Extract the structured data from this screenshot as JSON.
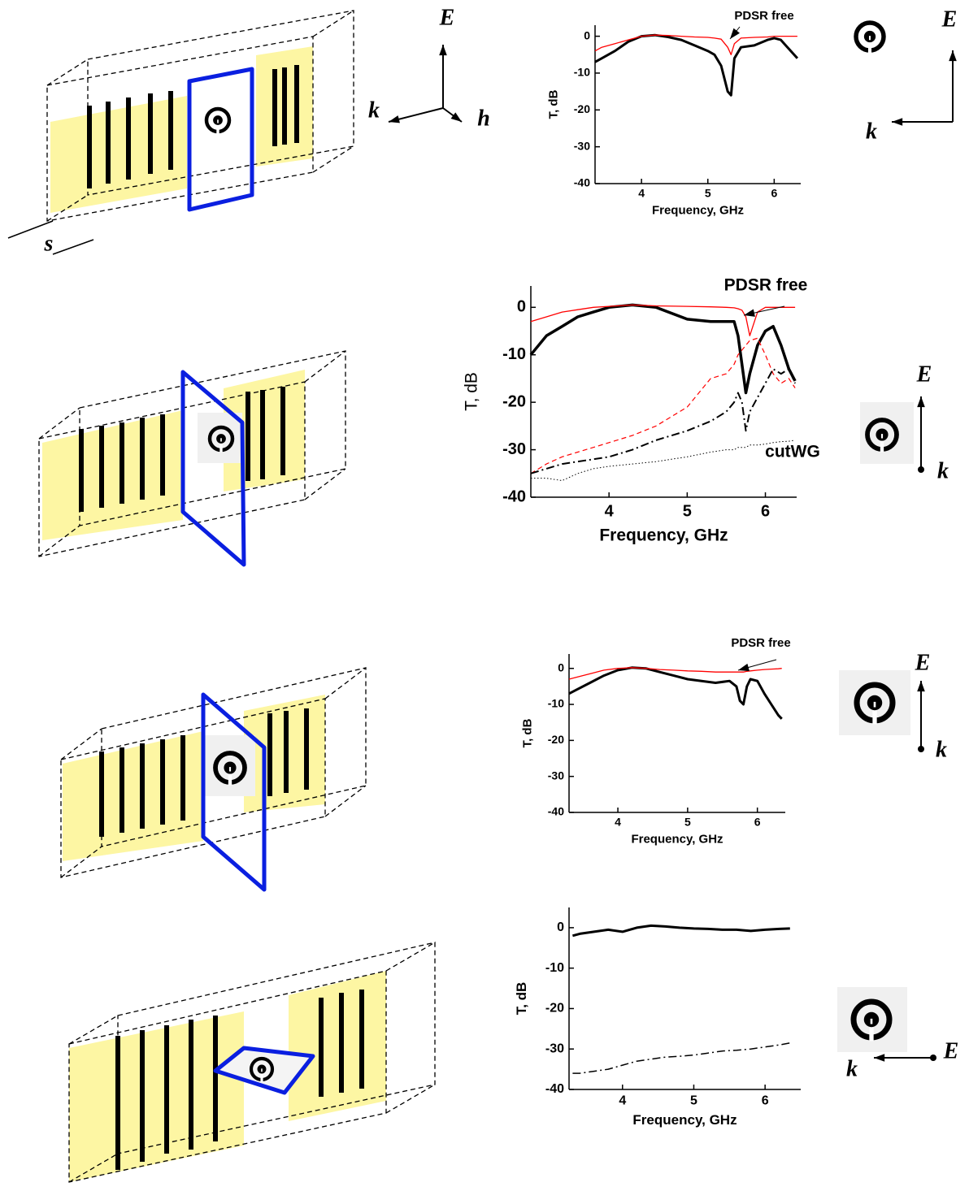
{
  "chart_data": [
    {
      "type": "line",
      "x_label": "Frequency, GHz",
      "y_label": "T, dB",
      "annotations": [
        "PDSR free"
      ],
      "xlim": [
        3.3,
        6.4
      ],
      "xticks": [
        4,
        5,
        6
      ],
      "ylim": [
        -40,
        3
      ],
      "yticks": [
        0,
        -10,
        -20,
        -30,
        -40
      ],
      "x": [
        3.3,
        3.4,
        3.6,
        3.8,
        4.0,
        4.2,
        4.4,
        4.6,
        4.8,
        5.0,
        5.1,
        5.2,
        5.3,
        5.35,
        5.4,
        5.5,
        5.7,
        5.9,
        6.0,
        6.1,
        6.2,
        6.35
      ],
      "series": [
        {
          "color": "#000000",
          "style": "solid",
          "line_width": 3,
          "values": [
            -7,
            -6,
            -4,
            -1.5,
            0,
            0.3,
            -0.2,
            -1,
            -2.5,
            -4,
            -5,
            -8,
            -15,
            -16,
            -6,
            -3,
            -2.5,
            -1,
            -0.5,
            -1,
            -3,
            -6
          ]
        },
        {
          "color": "#ff0000",
          "style": "solid",
          "line_width": 1.3,
          "values": [
            -4,
            -3,
            -2,
            -1,
            0,
            0.3,
            0.2,
            0,
            -0.2,
            -0.3,
            -0.5,
            -0.8,
            -3,
            -5,
            -2,
            -0.5,
            -0.3,
            -0.2,
            0,
            0,
            0,
            0
          ]
        }
      ]
    },
    {
      "type": "line",
      "x_label": "Frequency, GHz",
      "y_label": "T, dB",
      "annotations": [
        "PDSR free",
        "cutWG"
      ],
      "xlim": [
        3.0,
        6.4
      ],
      "xticks": [
        4,
        5,
        6
      ],
      "ylim": [
        -40,
        4.5
      ],
      "yticks": [
        0,
        -10,
        -20,
        -30,
        -40
      ],
      "x": [
        3.0,
        3.2,
        3.4,
        3.6,
        3.8,
        4.0,
        4.3,
        4.6,
        5.0,
        5.3,
        5.5,
        5.6,
        5.65,
        5.7,
        5.75,
        5.8,
        5.9,
        6.0,
        6.1,
        6.2,
        6.3,
        6.38
      ],
      "series": [
        {
          "color": "#000000",
          "style": "solid",
          "line_width": 3.5,
          "values": [
            -10,
            -6,
            -4,
            -2,
            -1,
            0,
            0.5,
            0,
            -2.5,
            -3,
            -3,
            -3,
            -6,
            -12,
            -18,
            -14,
            -8,
            -5,
            -4,
            -8,
            -13,
            -15.5
          ]
        },
        {
          "color": "#ff0000",
          "style": "solid",
          "line_width": 1.3,
          "values": [
            -3,
            -2,
            -1,
            -0.5,
            0,
            0.2,
            0.5,
            0.3,
            0.2,
            0.1,
            0,
            -0.1,
            -0.3,
            -0.6,
            -2,
            -6,
            -1,
            0,
            0,
            0,
            0,
            0
          ]
        },
        {
          "color": "#ff0000",
          "style": "dashed",
          "line_width": 1.2,
          "values": [
            -35,
            -33,
            -31.5,
            -30.5,
            -29.5,
            -28.5,
            -27,
            -25,
            -21,
            -15,
            -14,
            -12,
            -10,
            -9,
            -8,
            -7,
            -6.5,
            -10,
            -14,
            -16,
            -15,
            -17
          ]
        },
        {
          "color": "#000000",
          "style": "dashdot",
          "line_width": 2,
          "values": [
            -35,
            -34,
            -33,
            -32.5,
            -32,
            -31.5,
            -30,
            -28,
            -26,
            -24,
            -22,
            -20,
            -18,
            -20,
            -26,
            -22,
            -19,
            -16,
            -13,
            -14,
            -13,
            -16
          ]
        },
        {
          "color": "#000000",
          "style": "dotted",
          "line_width": 1,
          "values": [
            -36,
            -36,
            -36.5,
            -35,
            -34,
            -33.5,
            -33,
            -32.5,
            -31.5,
            -30.5,
            -30,
            -30,
            -29.5,
            -29.5,
            -29.5,
            -29,
            -29,
            -28.8,
            -28.5,
            -28.3,
            -28.2,
            -28
          ]
        }
      ]
    },
    {
      "type": "line",
      "x_label": "Frequency, GHz",
      "y_label": "T, dB",
      "annotations": [
        "PDSR free"
      ],
      "xlim": [
        3.3,
        6.4
      ],
      "xticks": [
        4,
        5,
        6
      ],
      "ylim": [
        -40,
        4
      ],
      "yticks": [
        0,
        -10,
        -20,
        -30,
        -40
      ],
      "x": [
        3.3,
        3.4,
        3.6,
        3.8,
        4.0,
        4.2,
        4.4,
        4.6,
        4.8,
        5.0,
        5.2,
        5.4,
        5.6,
        5.7,
        5.75,
        5.8,
        5.85,
        5.9,
        6.0,
        6.1,
        6.2,
        6.3,
        6.35
      ],
      "series": [
        {
          "color": "#000000",
          "style": "solid",
          "line_width": 3,
          "values": [
            -7,
            -6,
            -4,
            -2,
            -0.5,
            0.2,
            0,
            -1,
            -2,
            -3,
            -3.5,
            -4,
            -3.5,
            -5,
            -9,
            -10,
            -5,
            -3,
            -3.5,
            -7,
            -10,
            -13,
            -14
          ]
        },
        {
          "color": "#ff0000",
          "style": "solid",
          "line_width": 1.3,
          "values": [
            -3,
            -2.5,
            -1.5,
            -0.5,
            0,
            0.2,
            0,
            -0.3,
            -0.5,
            -0.7,
            -0.8,
            -1,
            -1,
            -1,
            -1,
            -1,
            -0.8,
            -0.7,
            -0.5,
            -0.3,
            -0.2,
            -0.1,
            0
          ]
        }
      ]
    },
    {
      "type": "line",
      "x_label": "Frequency, GHz",
      "y_label": "T, dB",
      "xlim": [
        3.25,
        6.5
      ],
      "xticks": [
        4,
        5,
        6
      ],
      "ylim": [
        -40,
        5
      ],
      "yticks": [
        0,
        -10,
        -20,
        -30,
        -40
      ],
      "x": [
        3.3,
        3.4,
        3.6,
        3.8,
        4.0,
        4.2,
        4.4,
        4.6,
        4.8,
        5.0,
        5.2,
        5.4,
        5.6,
        5.8,
        6.0,
        6.2,
        6.35
      ],
      "series": [
        {
          "color": "#000000",
          "style": "solid",
          "line_width": 3,
          "values": [
            -2,
            -1.5,
            -1,
            -0.5,
            -1,
            0,
            0.5,
            0.3,
            0,
            -0.2,
            -0.3,
            -0.5,
            -0.5,
            -0.8,
            -0.5,
            -0.3,
            -0.2
          ]
        },
        {
          "color": "#000000",
          "style": "dashdot",
          "line_width": 1.5,
          "values": [
            -36,
            -36,
            -35.5,
            -35,
            -34,
            -33,
            -32.5,
            -32,
            -31.8,
            -31.5,
            -31,
            -30.5,
            -30.3,
            -30,
            -29.5,
            -29,
            -28.5
          ]
        }
      ]
    }
  ],
  "field_labels": [
    [
      "E",
      "k",
      "h",
      "s",
      "E",
      "k"
    ],
    [
      "E",
      "k"
    ],
    [
      "E",
      "k"
    ],
    [
      "k",
      "E"
    ]
  ]
}
